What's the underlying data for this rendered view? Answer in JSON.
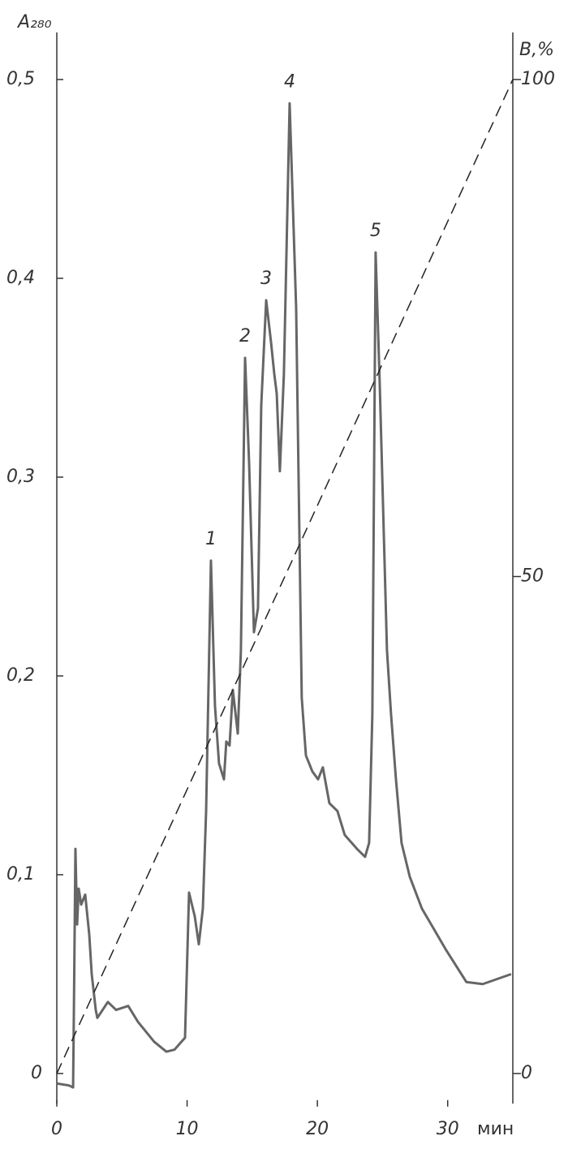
{
  "chart_data": {
    "type": "line",
    "ylabel": "A₂₈₀",
    "y2label": "B,%",
    "xlabel": "мин",
    "xlim": [
      0,
      35
    ],
    "xticks": [
      0,
      10,
      20,
      30
    ],
    "ylim": [
      -0.015,
      0.53
    ],
    "yticks": [
      0,
      {
        "value": 0.1,
        "label": "0,1"
      },
      {
        "value": 0.2,
        "label": "0,2"
      },
      {
        "value": 0.3,
        "label": "0,3"
      },
      {
        "value": 0.4,
        "label": "0,4"
      },
      {
        "value": 0.5,
        "label": "0,5"
      }
    ],
    "y2lim": [
      -3,
      106
    ],
    "y2ticks": [
      0,
      50,
      100
    ],
    "series": [
      {
        "color": "#666666",
        "dash": false,
        "x": [
          0,
          0.93,
          1.25,
          1.31,
          1.43,
          1.56,
          1.68,
          1.87,
          2.18,
          2.49,
          2.68,
          2.99,
          3.11,
          3.92,
          4.55,
          5.48,
          6.23,
          7.47,
          8.41,
          9.03,
          9.84,
          10.15,
          10.59,
          10.9,
          11.21,
          11.46,
          11.83,
          12.14,
          12.45,
          12.83,
          13.01,
          13.26,
          13.51,
          13.89,
          14.13,
          14.45,
          14.76,
          15.13,
          15.44,
          15.69,
          16.07,
          16.44,
          16.69,
          16.88,
          17.12,
          17.43,
          17.87,
          18.37,
          18.8,
          19.12,
          19.61,
          20.05,
          20.42,
          20.92,
          21.54,
          22.1,
          23.04,
          23.66,
          23.97,
          24.22,
          24.47,
          24.78,
          25.34,
          25.65,
          26.03,
          26.46,
          27.09,
          28.02,
          29.27,
          29.89,
          31.44,
          32.69,
          34.87
        ],
        "values": [
          -0.005,
          -0.006,
          -0.007,
          0.03,
          0.113,
          0.075,
          0.093,
          0.085,
          0.09,
          0.07,
          0.05,
          0.032,
          0.028,
          0.036,
          0.032,
          0.034,
          0.026,
          0.016,
          0.011,
          0.012,
          0.018,
          0.091,
          0.079,
          0.065,
          0.083,
          0.132,
          0.258,
          0.185,
          0.156,
          0.148,
          0.167,
          0.165,
          0.193,
          0.171,
          0.213,
          0.36,
          0.307,
          0.222,
          0.234,
          0.336,
          0.389,
          0.368,
          0.352,
          0.342,
          0.303,
          0.352,
          0.488,
          0.385,
          0.189,
          0.16,
          0.152,
          0.148,
          0.154,
          0.136,
          0.132,
          0.12,
          0.113,
          0.109,
          0.116,
          0.181,
          0.413,
          0.348,
          0.213,
          0.181,
          0.148,
          0.116,
          0.099,
          0.083,
          0.069,
          0.062,
          0.046,
          0.045,
          0.05
        ]
      },
      {
        "color": "#222222",
        "dash": true,
        "axis": "y2",
        "x": [
          0,
          35
        ],
        "values": [
          0,
          100
        ]
      }
    ],
    "annotations": [
      {
        "text": "1",
        "x": 11.83,
        "y": 0.258
      },
      {
        "text": "2",
        "x": 14.45,
        "y": 0.36
      },
      {
        "text": "3",
        "x": 16.07,
        "y": 0.389
      },
      {
        "text": "4",
        "x": 17.87,
        "y": 0.488
      },
      {
        "text": "5",
        "x": 24.47,
        "y": 0.413
      }
    ]
  }
}
